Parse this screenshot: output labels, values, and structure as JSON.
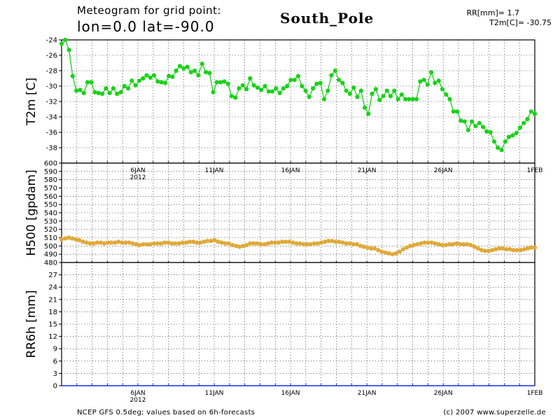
{
  "header": {
    "title_line1": "Meteogram for grid point:",
    "title_line2": "lon=0.0 lat=-90.0",
    "station": "South_Pole",
    "rr_label": "RR[mm]= 1.7",
    "t2m_label": "T2m[C]= -30.75"
  },
  "footer": {
    "source": "NCEP GFS 0.5deg; values based on 6h-forecasts",
    "copyright": "(c) 2007 www.superzelle.de"
  },
  "colors": {
    "t2m": "#19d219",
    "h500": "#e0a93a",
    "rr": "#2040ff",
    "grid": "#000000"
  },
  "chart_data": [
    {
      "type": "line",
      "name": "t2m_panel",
      "ylabel": "T2m [C]",
      "ylim": [
        -40,
        -24
      ],
      "yticks": [
        -24,
        -26,
        -28,
        -30,
        -32,
        -34,
        -36,
        -38
      ],
      "xlim": [
        0,
        31
      ],
      "xticks": [
        {
          "x": 5,
          "label": "6JAN",
          "sub": "2012"
        },
        {
          "x": 10,
          "label": "11JAN"
        },
        {
          "x": 15,
          "label": "16JAN"
        },
        {
          "x": 20,
          "label": "21JAN"
        },
        {
          "x": 25,
          "label": "26JAN"
        },
        {
          "x": 31,
          "label": "1FEB"
        }
      ],
      "grid": true,
      "series": [
        {
          "values": [
            -24.5,
            -24.0,
            -25.3,
            -28.7,
            -30.6,
            -30.5,
            -30.9,
            -29.5,
            -29.5,
            -30.8,
            -30.9,
            -31.0,
            -30.3,
            -30.9,
            -30.3,
            -31.0,
            -30.8,
            -30.0,
            -30.3,
            -29.3,
            -29.9,
            -29.3,
            -29.0,
            -28.6,
            -28.9,
            -28.6,
            -29.4,
            -29.5,
            -29.6,
            -28.7,
            -28.8,
            -28.0,
            -27.4,
            -27.7,
            -27.5,
            -28.2,
            -28.0,
            -28.6,
            -27.1,
            -28.2,
            -28.3,
            -30.8,
            -29.5,
            -29.5,
            -29.4,
            -29.7,
            -31.3,
            -31.5,
            -30.3,
            -29.9,
            -30.4,
            -29.0,
            -29.9,
            -30.2,
            -30.5,
            -30.0,
            -30.7,
            -30.7,
            -30.3,
            -30.9,
            -30.3,
            -30.0,
            -29.2,
            -29.2,
            -28.7,
            -30.0,
            -30.6,
            -31.4,
            -30.3,
            -29.7,
            -29.6,
            -31.7,
            -30.6,
            -28.6,
            -28.0,
            -29.2,
            -29.6,
            -30.6,
            -31.0,
            -30.2,
            -31.4,
            -30.6,
            -32.8,
            -33.6,
            -31.0,
            -30.4,
            -31.8,
            -31.3,
            -30.6,
            -31.3,
            -30.6,
            -31.7,
            -31.1,
            -31.7,
            -31.7,
            -31.7,
            -31.7,
            -29.4,
            -29.2,
            -29.8,
            -28.2,
            -29.6,
            -29.3,
            -30.4,
            -31.1,
            -31.7,
            -33.3,
            -33.3,
            -34.5,
            -34.6,
            -35.7,
            -34.6,
            -35.2,
            -34.8,
            -35.3,
            -35.9,
            -36.0,
            -37.2,
            -38.0,
            -38.3,
            -37.2,
            -36.6,
            -36.4,
            -36.1,
            -35.4,
            -34.8,
            -34.3,
            -33.3,
            -33.6
          ]
        }
      ]
    },
    {
      "type": "line",
      "name": "h500_panel",
      "ylabel": "H500 [gpdam]",
      "ylim": [
        480,
        600
      ],
      "yticks": [
        480,
        490,
        500,
        510,
        520,
        530,
        540,
        550,
        560,
        570,
        580,
        590,
        600
      ],
      "xlim": [
        0,
        31
      ],
      "grid": true,
      "series": [
        {
          "values": [
            508,
            509,
            510,
            509,
            508,
            507,
            505,
            504,
            503,
            503,
            504,
            504,
            503,
            504,
            504,
            504,
            505,
            504,
            504,
            504,
            503,
            502,
            501,
            502,
            502,
            502,
            503,
            503,
            503,
            504,
            504,
            503,
            503,
            503,
            504,
            504,
            505,
            505,
            504,
            504,
            505,
            506,
            506,
            507,
            505,
            504,
            503,
            503,
            501,
            500,
            499,
            500,
            501,
            503,
            503,
            503,
            502,
            502,
            503,
            504,
            504,
            504,
            505,
            505,
            505,
            504,
            503,
            503,
            502,
            502,
            502,
            503,
            503,
            504,
            505,
            506,
            506,
            505,
            505,
            504,
            503,
            503,
            502,
            502,
            500,
            499,
            498,
            497,
            497,
            495,
            493,
            492,
            491,
            490,
            491,
            493,
            496,
            498,
            500,
            501,
            502,
            503,
            504,
            504,
            504,
            503,
            502,
            501,
            501,
            502,
            502,
            503,
            502,
            502,
            502,
            501,
            499,
            497,
            495,
            494,
            494,
            495,
            496,
            497,
            497,
            496,
            496,
            495,
            495,
            495,
            496,
            497,
            498,
            498
          ]
        }
      ]
    },
    {
      "type": "line",
      "name": "rr_panel",
      "ylabel": "RR6h [mm]",
      "ylim": [
        0,
        30
      ],
      "yticks": [
        0,
        3,
        6,
        9,
        12,
        15,
        18,
        21,
        24,
        27
      ],
      "xlim": [
        0,
        31
      ],
      "xticks": [
        {
          "x": 5,
          "label": "6JAN",
          "sub": "2012"
        },
        {
          "x": 10,
          "label": "11JAN"
        },
        {
          "x": 15,
          "label": "16JAN"
        },
        {
          "x": 20,
          "label": "21JAN"
        },
        {
          "x": 25,
          "label": "26JAN"
        },
        {
          "x": 31,
          "label": "1FEB"
        }
      ],
      "grid": true,
      "series": [
        {
          "values": [
            0,
            0,
            0,
            0,
            0,
            0,
            0,
            0,
            0,
            0,
            0,
            0,
            0,
            0,
            0,
            0,
            0,
            0,
            0,
            0,
            0,
            0,
            0,
            0,
            0,
            0,
            0,
            0,
            0,
            0,
            0
          ]
        }
      ]
    }
  ]
}
